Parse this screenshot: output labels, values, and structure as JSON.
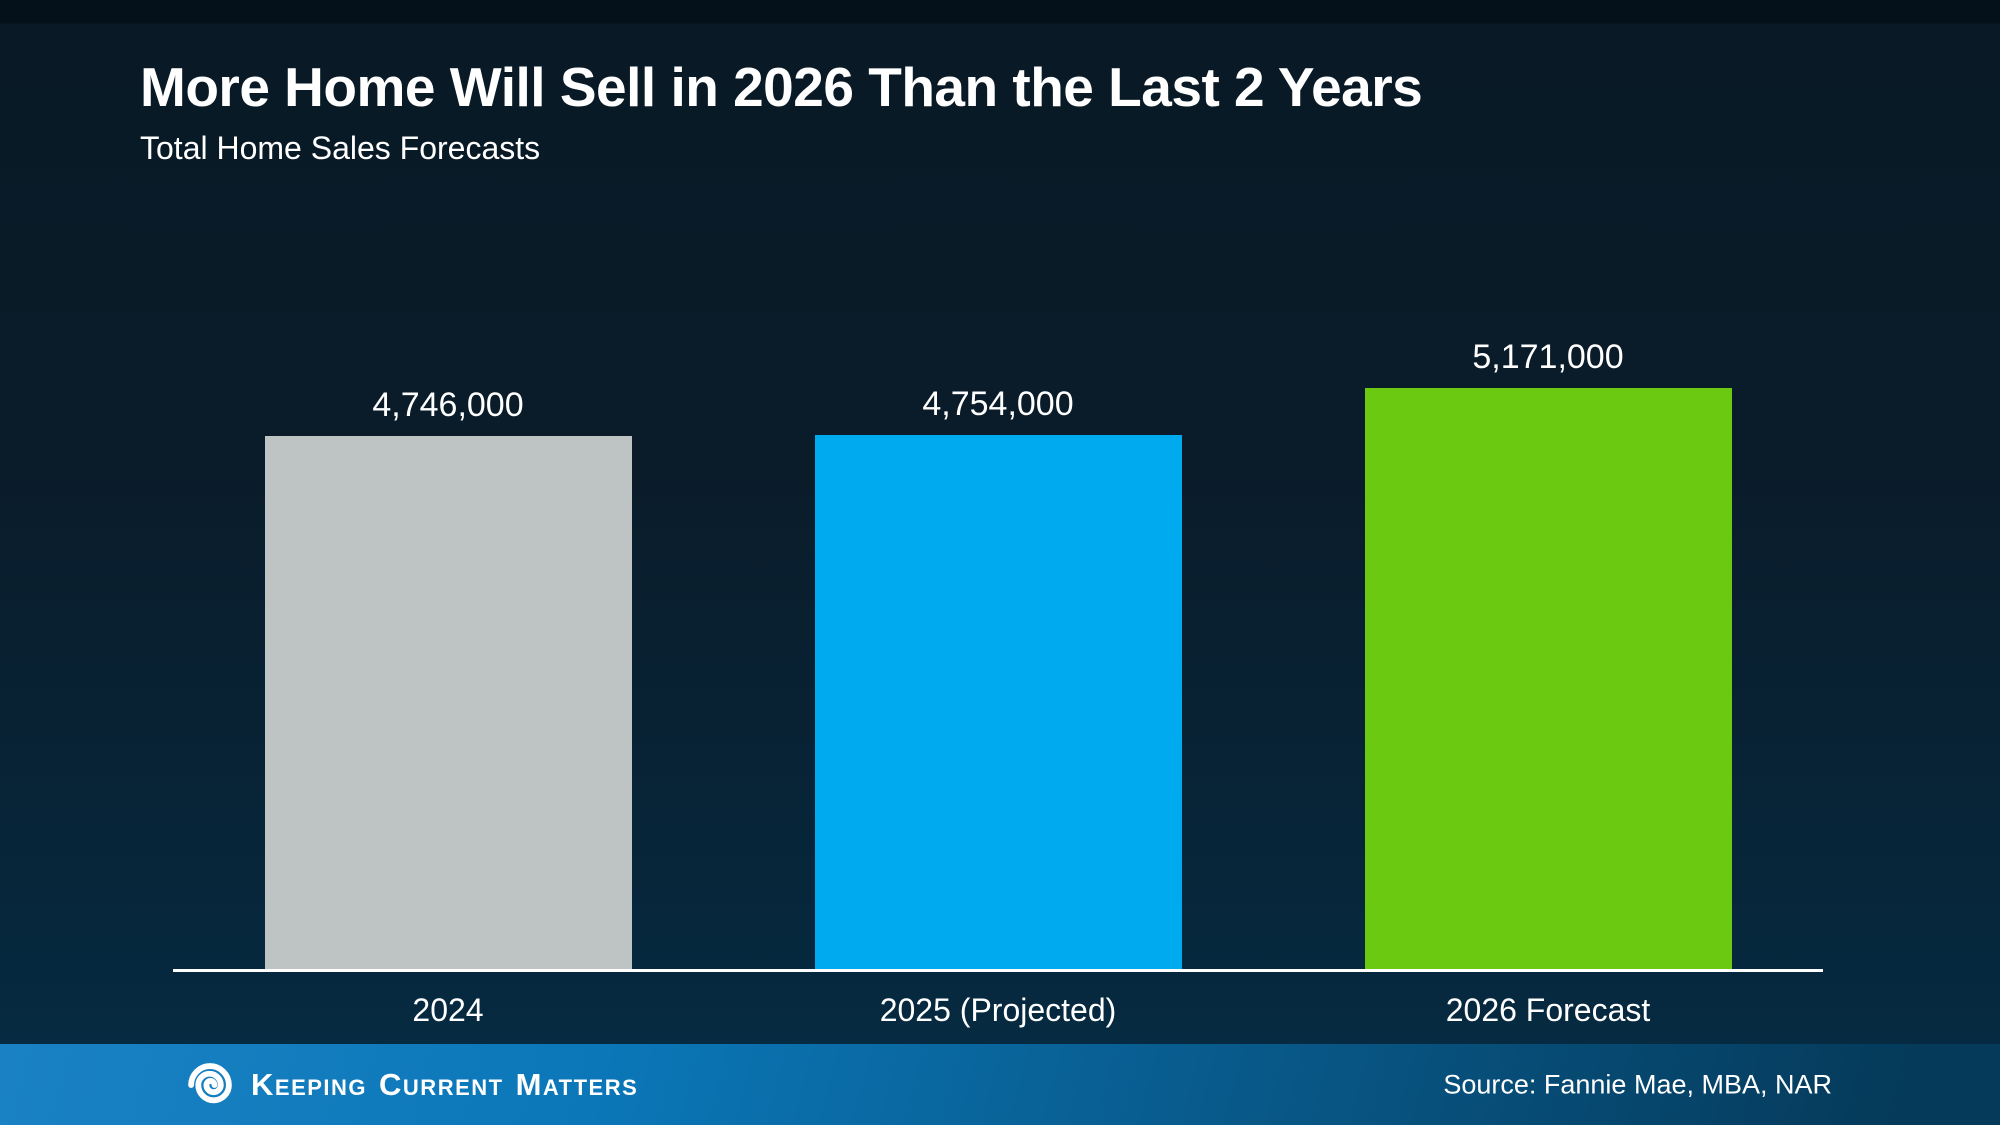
{
  "slide": {
    "title": "More Home Will Sell in 2026 Than the Last 2 Years",
    "subtitle": "Total Home Sales Forecasts"
  },
  "chart_data": {
    "type": "bar",
    "title": "Total Home Sales Forecasts",
    "categories": [
      "2024",
      "2025 (Projected)",
      "2026 Forecast"
    ],
    "values": [
      4746000,
      4754000,
      5171000
    ],
    "value_labels": [
      "4,746,000",
      "4,754,000",
      "5,171,000"
    ],
    "colors": [
      "#bec3c4",
      "#00aaee",
      "#6cc912"
    ],
    "ylim": [
      0,
      5171000
    ],
    "grid": false,
    "legend": "none",
    "baseline_axis": "x-axis white line, no tick marks, no y-axis"
  },
  "footer": {
    "brand_words": [
      {
        "initial": "K",
        "rest": "EEPING"
      },
      {
        "initial": "C",
        "rest": "URRENT"
      },
      {
        "initial": "M",
        "rest": "ATTERS"
      }
    ],
    "source": "Source: Fannie Mae, MBA, NAR"
  },
  "theme": {
    "text_color": "#ffffff",
    "axis_color": "#ffffff",
    "bg_top": "#04101a",
    "bg_upper": "#091a26",
    "bg_mid": "#0a1c2a",
    "bg_bottom": "#052c44",
    "footer_left": "#1a82c4",
    "footer_mid": "#0b77b8",
    "footer_right": "#053a5a",
    "bar_gray": "#bec3c4",
    "bar_blue": "#00aaee",
    "bar_green": "#6cc912"
  }
}
